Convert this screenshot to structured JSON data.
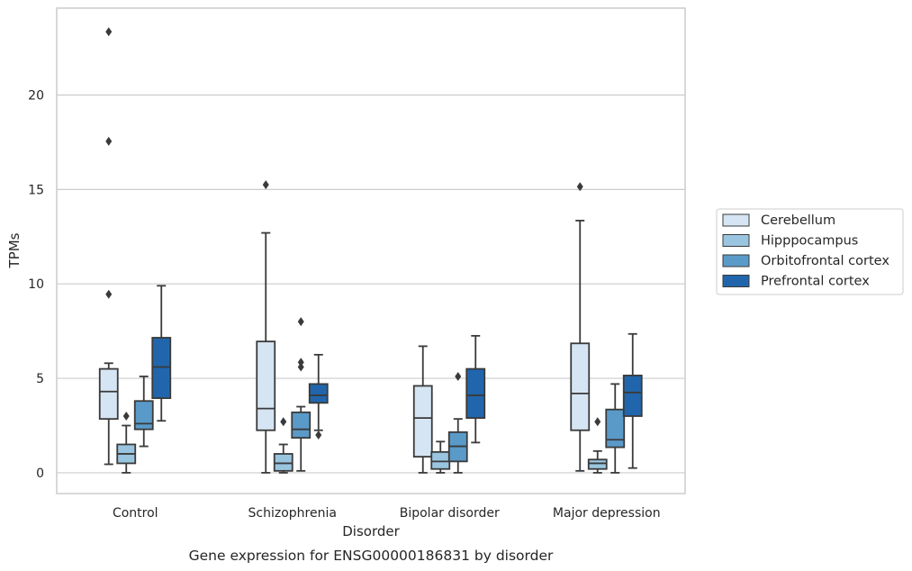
{
  "chart_data": {
    "type": "box",
    "caption": "Gene expression for ENSG00000186831 by disorder",
    "xlabel": "Disorder",
    "ylabel": "TPMs",
    "ylim": [
      -1.1,
      24.6
    ],
    "yticks": [
      0,
      5,
      10,
      15,
      20
    ],
    "grid": "horizontal",
    "legend_position": "right",
    "categories": [
      "Control",
      "Schizophrenia",
      "Bipolar disorder",
      "Major depression"
    ],
    "series": [
      {
        "name": "Cerebellum",
        "color": "#d6e5f3",
        "boxes": [
          {
            "whislo": 0.45,
            "q1": 2.85,
            "med": 4.3,
            "q3": 5.5,
            "whishi": 5.8,
            "fliers": [
              9.45,
              17.55,
              23.35
            ]
          },
          {
            "whislo": 0.0,
            "q1": 2.25,
            "med": 3.4,
            "q3": 6.95,
            "whishi": 12.7,
            "fliers": [
              15.25
            ]
          },
          {
            "whislo": 0.0,
            "q1": 0.85,
            "med": 2.9,
            "q3": 4.6,
            "whishi": 6.7,
            "fliers": []
          },
          {
            "whislo": 0.1,
            "q1": 2.25,
            "med": 4.2,
            "q3": 6.85,
            "whishi": 13.35,
            "fliers": [
              15.15
            ]
          }
        ]
      },
      {
        "name": "Hipppocampus",
        "color": "#9ac5e0",
        "boxes": [
          {
            "whislo": 0.0,
            "q1": 0.5,
            "med": 1.0,
            "q3": 1.5,
            "whishi": 2.5,
            "fliers": [
              3.0
            ]
          },
          {
            "whislo": 0.0,
            "q1": 0.1,
            "med": 0.5,
            "q3": 1.0,
            "whishi": 1.5,
            "fliers": [
              2.7
            ]
          },
          {
            "whislo": 0.0,
            "q1": 0.2,
            "med": 0.6,
            "q3": 1.1,
            "whishi": 1.65,
            "fliers": []
          },
          {
            "whislo": 0.0,
            "q1": 0.2,
            "med": 0.5,
            "q3": 0.7,
            "whishi": 1.15,
            "fliers": [
              2.7
            ]
          }
        ]
      },
      {
        "name": "Orbitofrontal cortex",
        "color": "#5a9ac8",
        "boxes": [
          {
            "whislo": 1.4,
            "q1": 2.3,
            "med": 2.6,
            "q3": 3.8,
            "whishi": 5.1,
            "fliers": []
          },
          {
            "whislo": 0.1,
            "q1": 1.85,
            "med": 2.3,
            "q3": 3.2,
            "whishi": 3.5,
            "fliers": [
              5.6,
              5.85,
              8.0
            ]
          },
          {
            "whislo": 0.0,
            "q1": 0.6,
            "med": 1.4,
            "q3": 2.15,
            "whishi": 2.85,
            "fliers": [
              5.1
            ]
          },
          {
            "whislo": 0.0,
            "q1": 1.35,
            "med": 1.75,
            "q3": 3.35,
            "whishi": 4.7,
            "fliers": []
          }
        ]
      },
      {
        "name": "Prefrontal cortex",
        "color": "#2166ac",
        "boxes": [
          {
            "whislo": 2.75,
            "q1": 3.95,
            "med": 5.6,
            "q3": 7.15,
            "whishi": 9.9,
            "fliers": []
          },
          {
            "whislo": 2.25,
            "q1": 3.7,
            "med": 4.1,
            "q3": 4.7,
            "whishi": 6.25,
            "fliers": [
              2.0
            ]
          },
          {
            "whislo": 1.6,
            "q1": 2.9,
            "med": 4.1,
            "q3": 5.5,
            "whishi": 7.25,
            "fliers": []
          },
          {
            "whislo": 0.25,
            "q1": 3.0,
            "med": 4.25,
            "q3": 5.15,
            "whishi": 7.35,
            "fliers": []
          }
        ]
      }
    ]
  }
}
